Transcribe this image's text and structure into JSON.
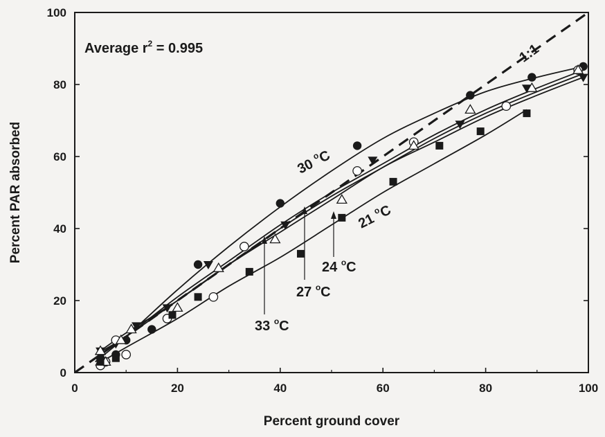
{
  "chart_data": {
    "type": "scatter",
    "title": "",
    "xlabel": "Percent ground cover",
    "ylabel": "Percent PAR absorbed",
    "xlim": [
      0,
      100
    ],
    "ylim": [
      0,
      100
    ],
    "x_ticks": [
      "0",
      "20",
      "40",
      "60",
      "80",
      "100"
    ],
    "y_ticks": [
      "0",
      "20",
      "40",
      "60",
      "80",
      "100"
    ],
    "grid": false,
    "legend": "none",
    "stat_annotation": {
      "prefix": "Average r",
      "superscript": "2",
      "suffix": " = 0.995"
    },
    "reference_line": {
      "label": "1:1",
      "x": [
        0,
        100
      ],
      "y": [
        0,
        100
      ]
    },
    "series": [
      {
        "name": "30 °C",
        "label_text": "30",
        "marker": "circle-filled",
        "x": [
          5,
          8,
          10,
          15,
          24,
          40,
          55,
          77,
          89,
          99
        ],
        "y": [
          4,
          5,
          9,
          12,
          30,
          47,
          63,
          77,
          82,
          85
        ],
        "fit": [
          [
            4,
            3
          ],
          [
            10,
            10
          ],
          [
            20,
            23
          ],
          [
            30,
            35
          ],
          [
            40,
            46
          ],
          [
            50,
            56
          ],
          [
            60,
            65
          ],
          [
            70,
            72
          ],
          [
            80,
            78
          ],
          [
            90,
            82
          ],
          [
            99,
            85
          ]
        ]
      },
      {
        "name": "33 °C",
        "label_text": "33",
        "marker": "triangle-down-filled",
        "x": [
          5,
          8,
          12,
          18,
          26,
          41,
          58,
          75,
          88,
          99
        ],
        "y": [
          6,
          8,
          13,
          18,
          30,
          41,
          59,
          69,
          79,
          82
        ],
        "fit": [
          [
            4,
            5
          ],
          [
            10,
            11
          ],
          [
            20,
            20
          ],
          [
            30,
            30
          ],
          [
            40,
            40
          ],
          [
            50,
            49
          ],
          [
            60,
            57
          ],
          [
            70,
            65
          ],
          [
            80,
            72
          ],
          [
            90,
            78
          ],
          [
            99,
            83
          ]
        ]
      },
      {
        "name": "27 °C",
        "label_text": "27",
        "marker": "circle-open",
        "x": [
          5,
          6,
          8,
          10,
          18,
          27,
          33,
          55,
          66,
          84,
          98
        ],
        "y": [
          2,
          3,
          9,
          5,
          15,
          21,
          35,
          56,
          64,
          74,
          84
        ],
        "fit": [
          [
            4,
            4
          ],
          [
            10,
            10
          ],
          [
            20,
            21
          ],
          [
            30,
            31
          ],
          [
            40,
            41
          ],
          [
            50,
            50
          ],
          [
            60,
            58
          ],
          [
            70,
            66
          ],
          [
            80,
            73
          ],
          [
            90,
            79
          ],
          [
            99,
            84
          ]
        ]
      },
      {
        "name": "24 °C",
        "label_text": "24",
        "marker": "triangle-up-open",
        "x": [
          5,
          6,
          9,
          11,
          20,
          28,
          39,
          52,
          66,
          77,
          89,
          98
        ],
        "y": [
          6,
          3,
          9,
          12,
          18,
          29,
          37,
          48,
          63,
          73,
          79,
          84
        ],
        "fit": [
          [
            4,
            5
          ],
          [
            10,
            10
          ],
          [
            20,
            20
          ],
          [
            30,
            30
          ],
          [
            40,
            39
          ],
          [
            50,
            48
          ],
          [
            60,
            57
          ],
          [
            70,
            64
          ],
          [
            80,
            71
          ],
          [
            90,
            77
          ],
          [
            99,
            82
          ]
        ]
      },
      {
        "name": "21 °C",
        "label_text": "21",
        "marker": "square-filled",
        "x": [
          5,
          8,
          19,
          24,
          34,
          44,
          52,
          62,
          71,
          79,
          88
        ],
        "y": [
          3,
          4,
          16,
          21,
          28,
          33,
          43,
          53,
          63,
          67,
          72
        ],
        "fit": [
          [
            4,
            2
          ],
          [
            10,
            7
          ],
          [
            20,
            15
          ],
          [
            30,
            24
          ],
          [
            40,
            32
          ],
          [
            50,
            41
          ],
          [
            60,
            50
          ],
          [
            70,
            58
          ],
          [
            80,
            66
          ],
          [
            88,
            73
          ]
        ]
      }
    ]
  }
}
